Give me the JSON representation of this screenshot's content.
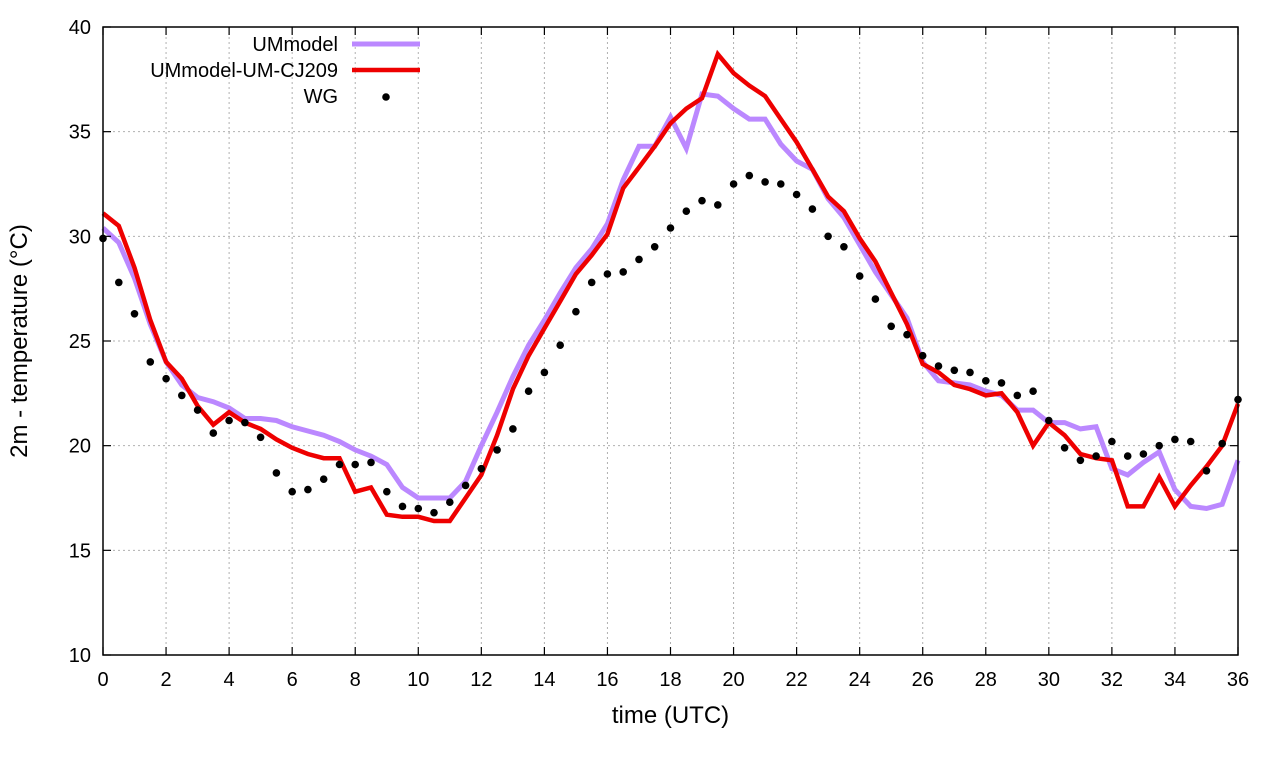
{
  "chart_data": {
    "type": "line",
    "title": "",
    "xlabel": "time (UTC)",
    "ylabel": "2m - temperature (°C)",
    "xlim": [
      0,
      36
    ],
    "ylim": [
      10,
      40
    ],
    "xticks": [
      0,
      2,
      4,
      6,
      8,
      10,
      12,
      14,
      16,
      18,
      20,
      22,
      24,
      26,
      28,
      30,
      32,
      34,
      36
    ],
    "yticks": [
      10,
      15,
      20,
      25,
      30,
      35,
      40
    ],
    "grid": true,
    "legend_position": "top-left",
    "series": [
      {
        "name": "UMmodel",
        "style": "line",
        "color": "#bb88ff",
        "x": [
          0,
          0.5,
          1,
          1.5,
          2,
          2.5,
          3,
          3.5,
          4,
          4.5,
          5,
          5.5,
          6,
          6.5,
          7,
          7.5,
          8,
          8.5,
          9,
          9.5,
          10,
          10.5,
          11,
          11.5,
          12,
          12.5,
          13,
          13.5,
          14,
          14.5,
          15,
          15.5,
          16,
          16.5,
          17,
          17.5,
          18,
          18.5,
          19,
          19.5,
          20,
          20.5,
          21,
          21.5,
          22,
          22.5,
          23,
          23.5,
          24,
          24.5,
          25,
          25.5,
          26,
          26.5,
          27,
          27.5,
          28,
          28.5,
          29,
          29.5,
          30,
          30.5,
          31,
          31.5,
          32,
          32.5,
          33,
          33.5,
          34,
          34.5,
          35,
          35.5,
          36
        ],
        "y": [
          30.4,
          29.7,
          28,
          25.8,
          24,
          22.9,
          22.3,
          22.1,
          21.8,
          21.3,
          21.3,
          21.2,
          20.9,
          20.7,
          20.5,
          20.2,
          19.8,
          19.5,
          19.1,
          18,
          17.5,
          17.5,
          17.5,
          18.3,
          20,
          21.6,
          23.3,
          24.8,
          26,
          27.3,
          28.5,
          29.4,
          30.6,
          32.7,
          34.3,
          34.3,
          35.7,
          34.2,
          36.8,
          36.7,
          36.1,
          35.6,
          35.6,
          34.4,
          33.6,
          33.2,
          31.8,
          30.9,
          29.6,
          28.3,
          27.2,
          26.1,
          24,
          23.1,
          23,
          22.9,
          22.6,
          22.4,
          21.7,
          21.7,
          21.1,
          21.1,
          20.8,
          20.9,
          18.9,
          18.6,
          19.2,
          19.7,
          17.9,
          17.1,
          17,
          17.2,
          19.3
        ]
      },
      {
        "name": "UMmodel-UM-CJ209",
        "style": "line",
        "color": "#ee0000",
        "x": [
          0,
          0.5,
          1,
          1.5,
          2,
          2.5,
          3,
          3.5,
          4,
          4.5,
          5,
          5.5,
          6,
          6.5,
          7,
          7.5,
          8,
          8.5,
          9,
          9.5,
          10,
          10.5,
          11,
          11.5,
          12,
          12.5,
          13,
          13.5,
          14,
          14.5,
          15,
          15.5,
          16,
          16.5,
          17,
          17.5,
          18,
          18.5,
          19,
          19.5,
          20,
          20.5,
          21,
          21.5,
          22,
          22.5,
          23,
          23.5,
          24,
          24.5,
          25,
          25.5,
          26,
          26.5,
          27,
          27.5,
          28,
          28.5,
          29,
          29.5,
          30,
          30.5,
          31,
          31.5,
          32,
          32.5,
          33,
          33.5,
          34,
          34.5,
          35,
          35.5,
          36
        ],
        "y": [
          31.1,
          30.5,
          28.5,
          26,
          24,
          23.2,
          21.9,
          21,
          21.6,
          21.1,
          20.8,
          20.3,
          19.9,
          19.6,
          19.4,
          19.4,
          17.8,
          18,
          16.7,
          16.6,
          16.6,
          16.4,
          16.4,
          17.5,
          18.6,
          20.5,
          22.7,
          24.3,
          25.6,
          26.9,
          28.2,
          29.1,
          30.1,
          32.3,
          33.3,
          34.3,
          35.4,
          36.1,
          36.6,
          38.7,
          37.8,
          37.2,
          36.7,
          35.6,
          34.5,
          33.2,
          31.9,
          31.2,
          29.9,
          28.8,
          27.3,
          25.8,
          23.9,
          23.5,
          22.9,
          22.7,
          22.4,
          22.5,
          21.6,
          20,
          21.1,
          20.5,
          19.6,
          19.4,
          19.3,
          17.1,
          17.1,
          18.5,
          17.1,
          18.1,
          19,
          20,
          22
        ]
      },
      {
        "name": "WG",
        "style": "points",
        "color": "#000000",
        "x": [
          0,
          0.5,
          1,
          1.5,
          2,
          2.5,
          3,
          3.5,
          4,
          4.5,
          5,
          5.5,
          6,
          6.5,
          7,
          7.5,
          8,
          8.5,
          9,
          9.5,
          10,
          10.5,
          11,
          11.5,
          12,
          12.5,
          13,
          13.5,
          14,
          14.5,
          15,
          15.5,
          16,
          16.5,
          17,
          17.5,
          18,
          18.5,
          19,
          19.5,
          20,
          20.5,
          21,
          21.5,
          22,
          22.5,
          23,
          23.5,
          24,
          24.5,
          25,
          25.5,
          26,
          26.5,
          27,
          27.5,
          28,
          28.5,
          29,
          29.5,
          30,
          30.5,
          31,
          31.5,
          32,
          32.5,
          33,
          33.5,
          34,
          34.5,
          35,
          35.5,
          36
        ],
        "y": [
          29.9,
          27.8,
          26.3,
          24,
          23.2,
          22.4,
          21.7,
          20.6,
          21.2,
          21.1,
          20.4,
          18.7,
          17.8,
          17.9,
          18.4,
          19.1,
          19.1,
          19.2,
          17.8,
          17.1,
          17,
          16.8,
          17.3,
          18.1,
          18.9,
          19.8,
          20.8,
          22.6,
          23.5,
          24.8,
          26.4,
          27.8,
          28.2,
          28.3,
          28.9,
          29.5,
          30.4,
          31.2,
          31.7,
          31.5,
          32.5,
          32.9,
          32.6,
          32.5,
          32,
          31.3,
          30,
          29.5,
          28.1,
          27,
          25.7,
          25.3,
          24.3,
          23.8,
          23.6,
          23.5,
          23.1,
          23,
          22.4,
          22.6,
          21.2,
          19.9,
          19.3,
          19.5,
          20.2,
          19.5,
          19.6,
          20,
          20.3,
          20.2,
          18.8,
          20.1,
          22.2
        ]
      }
    ]
  }
}
